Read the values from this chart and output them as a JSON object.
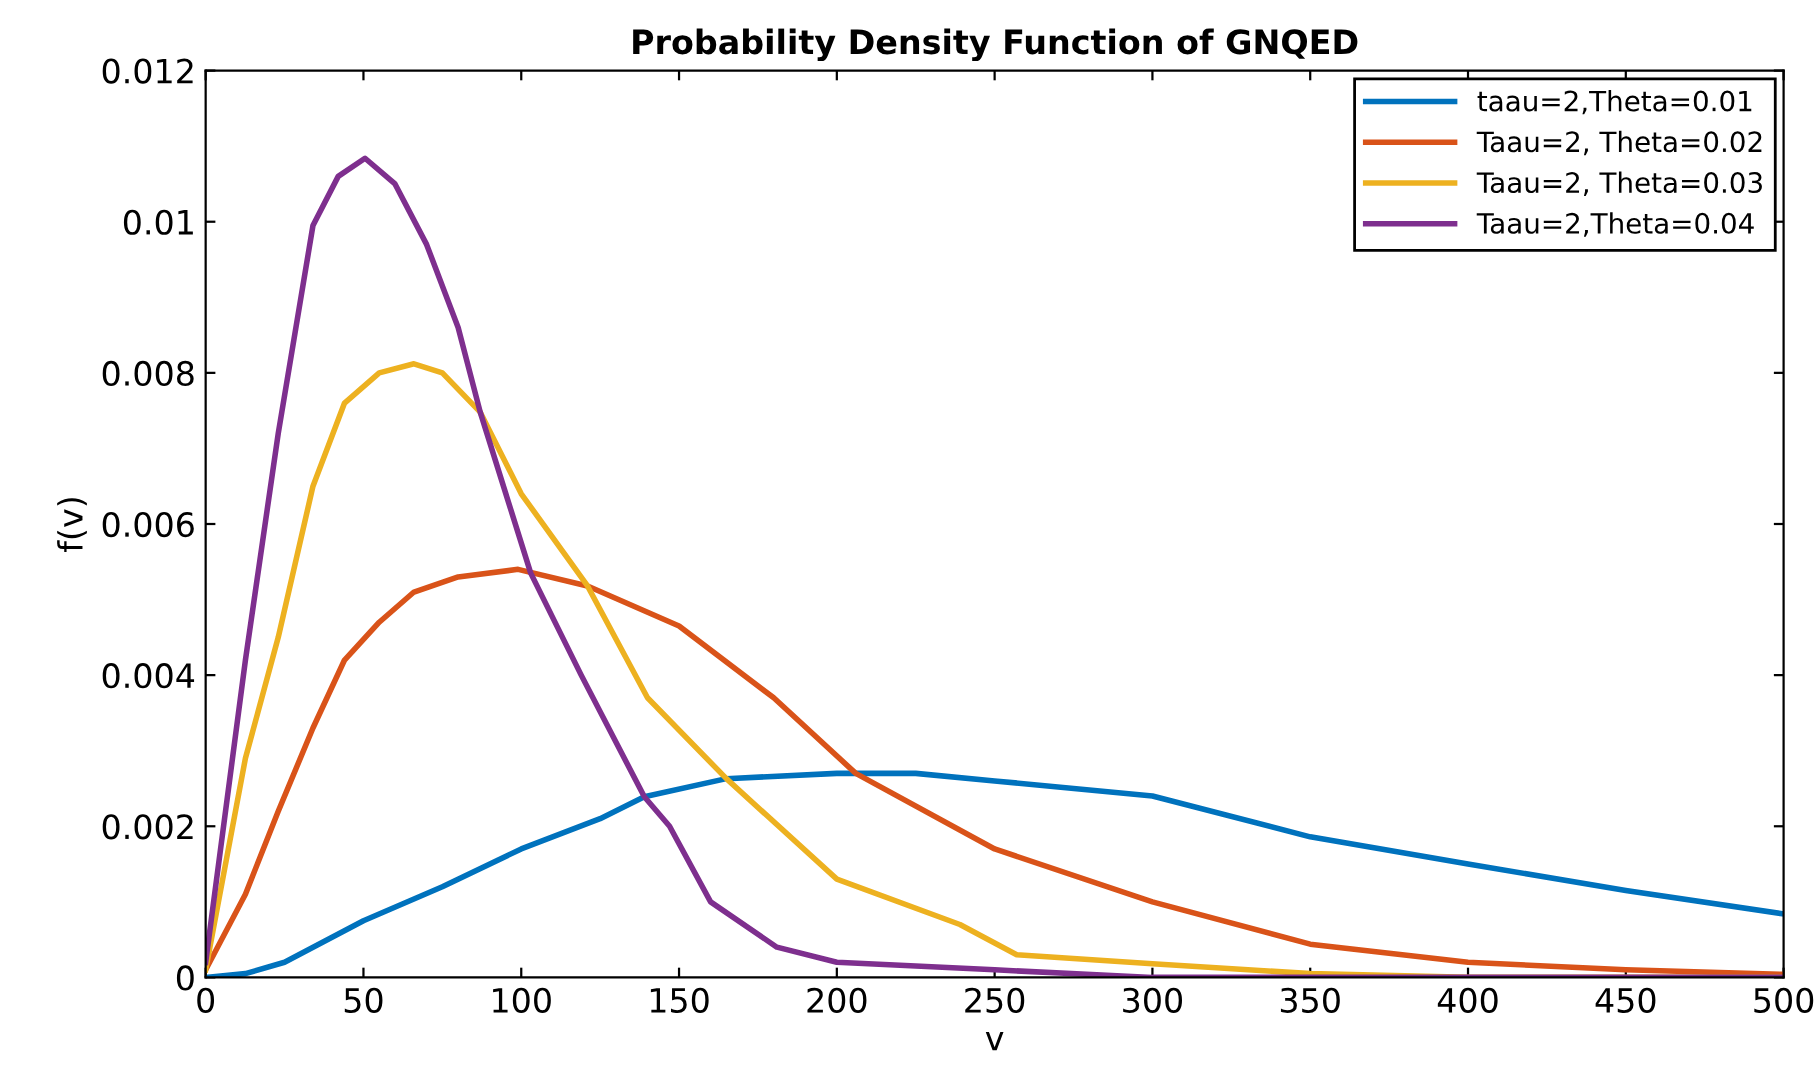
{
  "chart_data": {
    "type": "line",
    "title": "Probability Density Function of GNQED",
    "xlabel": "v",
    "ylabel": "f(v)",
    "xlim": [
      0,
      500
    ],
    "xticks": [
      0,
      50,
      100,
      150,
      200,
      250,
      300,
      350,
      400,
      450,
      500
    ],
    "ylim": [
      0,
      0.012
    ],
    "yticks": [
      0,
      0.002,
      0.004,
      0.006,
      0.008,
      0.01,
      0.012
    ],
    "grid": false,
    "legend": "top right",
    "marker": "none",
    "line_style": "solid",
    "series": [
      {
        "name": "taau=2,Theta=0.01",
        "color": "#0072bd",
        "x": [
          0,
          12.6,
          25,
          50,
          75,
          100,
          125,
          139,
          165,
          200,
          225,
          250,
          300,
          350,
          400,
          450,
          500
        ],
        "values": [
          0,
          5e-05,
          0.0002,
          0.00075,
          0.0012,
          0.0017,
          0.0021,
          0.00239,
          0.00263,
          0.0027,
          0.0027,
          0.0026,
          0.0024,
          0.00186,
          0.0015,
          0.00115,
          0.00084
        ]
      },
      {
        "name": "Taau=2, Theta=0.02",
        "color": "#d95319",
        "x": [
          0,
          12.6,
          23,
          34,
          44,
          55,
          66,
          80,
          99,
          121,
          150,
          180,
          206,
          250,
          300,
          350,
          400,
          450,
          500
        ],
        "values": [
          0.0001,
          0.0011,
          0.0022,
          0.0033,
          0.0042,
          0.0047,
          0.0051,
          0.0053,
          0.0054,
          0.00518,
          0.00465,
          0.0037,
          0.0027,
          0.0017,
          0.001,
          0.00044,
          0.0002,
          0.0001,
          4e-05
        ]
      },
      {
        "name": "Taau=2, Theta=0.03",
        "color": "#edb120",
        "x": [
          0,
          12.6,
          23,
          34,
          44,
          55,
          66,
          75,
          87,
          100,
          121,
          140,
          165,
          200,
          239,
          257,
          300,
          350,
          400,
          500
        ],
        "values": [
          0.0001,
          0.0029,
          0.0045,
          0.0065,
          0.0076,
          0.008,
          0.00812,
          0.008,
          0.00748,
          0.0064,
          0.00518,
          0.0037,
          0.00263,
          0.0013,
          0.0007,
          0.0003,
          0.00018,
          5e-05,
          0,
          0
        ]
      },
      {
        "name": "Taau=2,Theta=0.04",
        "color": "#7e2f8e",
        "x": [
          0,
          12.6,
          23,
          34,
          42,
          50.5,
          60,
          70,
          80,
          87,
          103,
          119,
          139,
          147,
          160,
          181,
          200,
          250,
          300,
          400,
          500
        ],
        "values": [
          0.0002,
          0.0042,
          0.0072,
          0.00995,
          0.0106,
          0.01084,
          0.0105,
          0.0097,
          0.0086,
          0.00748,
          0.00535,
          0.004,
          0.00239,
          0.002,
          0.001,
          0.0004,
          0.0002,
          0.0001,
          0,
          0,
          0
        ]
      }
    ]
  }
}
